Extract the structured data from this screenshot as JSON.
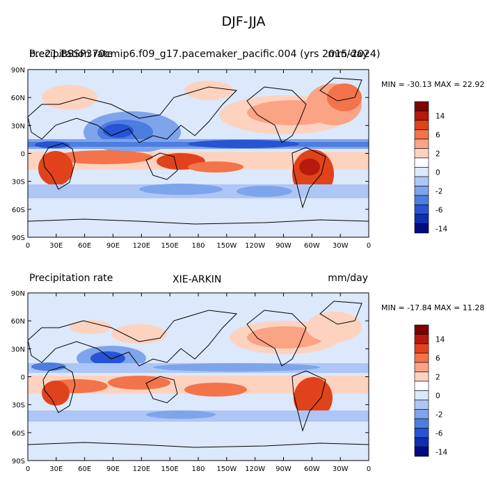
{
  "title": "DJF-JJA",
  "panels": [
    {
      "left_label": "Precipitation rate",
      "center_label": "b.e21.BSSP370cmip6.f09_g17.pacemaker_pacific.004 (yrs 2015-2024)",
      "units": "mm/day",
      "minmax": "MIN = -30.13 MAX = 22.92"
    },
    {
      "left_label": "Precipitation rate",
      "center_label": "XIE-ARKIN",
      "units": "mm/day",
      "minmax": "MIN = -17.84 MAX = 11.28"
    }
  ],
  "map_axes": {
    "lat_ticks": [
      "90N",
      "60N",
      "30N",
      "0",
      "30S",
      "60S",
      "90S"
    ],
    "lon_ticks": [
      "0",
      "30E",
      "60E",
      "90E",
      "120E",
      "150E",
      "180",
      "150W",
      "120W",
      "90W",
      "60W",
      "30W",
      "0"
    ]
  },
  "colorbar": {
    "labels": [
      "14",
      "6",
      "2",
      "0",
      "-2",
      "-6",
      "-14"
    ],
    "colors": [
      "#7f0000",
      "#b51a0c",
      "#e0431c",
      "#f3734a",
      "#fba385",
      "#fdd3c0",
      "#ffffff",
      "#dce8fb",
      "#aec6f5",
      "#7ea4ec",
      "#4e7de0",
      "#2654d4",
      "#0d2fb0",
      "#020a80"
    ]
  }
}
